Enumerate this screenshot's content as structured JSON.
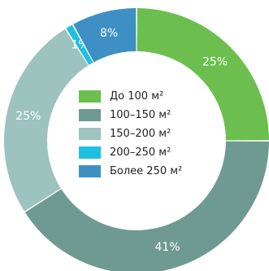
{
  "chart_data": {
    "type": "pie",
    "categories": [
      "До 100 м²",
      "100–150 м²",
      "150–200 м²",
      "200–250 м²",
      "Более 250 м²"
    ],
    "values": [
      25,
      41,
      25,
      1,
      8
    ],
    "value_labels": [
      "25%",
      "41%",
      "25%",
      "1%",
      "8%"
    ],
    "colors": [
      "#6cbf4e",
      "#6f9a91",
      "#9cc3be",
      "#1ec0e2",
      "#3d8fc4"
    ],
    "donut": true,
    "legend": "center"
  }
}
